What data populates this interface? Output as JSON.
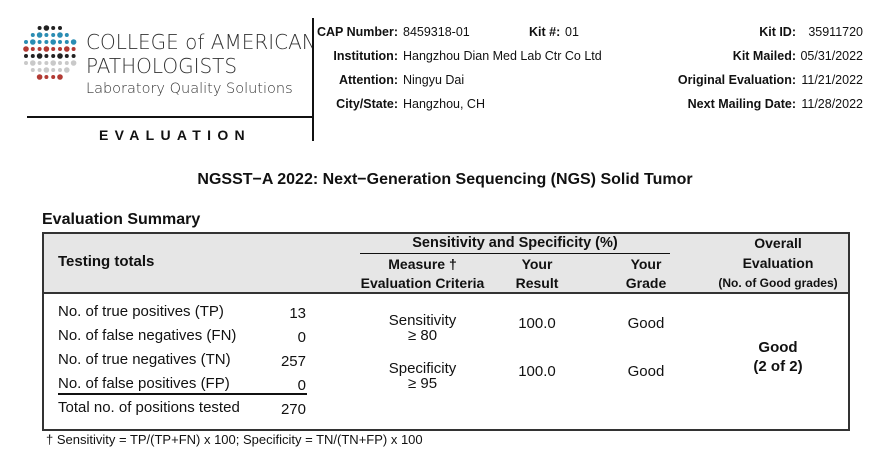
{
  "header": {
    "logo": {
      "line1": "COLLEGE of AMERICAN",
      "line2": "PATHOLOGISTS",
      "line3": "Laboratory Quality Solutions",
      "dot_colors": [
        "#2a8db3",
        "#b23a33",
        "#222222",
        "#c9c9c9"
      ]
    },
    "section": "EVALUATION",
    "cap_number_label": "CAP Number:",
    "cap_number": "8459318-01",
    "kit_no_label": "Kit #:",
    "kit_no": "01",
    "institution_label": "Institution:",
    "institution": "Hangzhou Dian Med Lab Ctr Co Ltd",
    "attention_label": "Attention:",
    "attention": "Ningyu Dai",
    "city_label": "City/State:",
    "city": "Hangzhou, CH",
    "kit_id_label": "Kit ID:",
    "kit_id": "35911720",
    "kit_mailed_label": "Kit Mailed:",
    "kit_mailed": "05/31/2022",
    "orig_eval_label": "Original Evaluation:",
    "orig_eval": "11/21/2022",
    "next_mail_label": "Next Mailing Date:",
    "next_mail": "11/28/2022"
  },
  "title": "NGSST−A 2022: Next−Generation Sequencing (NGS) Solid Tumor",
  "summary": {
    "heading": "Evaluation Summary",
    "header_bg": "#e6e6e6",
    "col_testing": "Testing totals",
    "group_header": "Sensitivity and Specificity (%)",
    "col_measure": [
      "Measure †",
      "Evaluation Criteria"
    ],
    "col_result": [
      "Your",
      "Result"
    ],
    "col_grade": [
      "Your",
      "Grade"
    ],
    "col_overall": [
      "Overall",
      "Evaluation",
      "(No. of Good grades)"
    ],
    "totals": [
      {
        "label": "No. of true positives (TP)",
        "value": "13"
      },
      {
        "label": "No. of false negatives (FN)",
        "value": "0"
      },
      {
        "label": "No. of true negatives (TN)",
        "value": "257"
      },
      {
        "label": "No. of false positives (FP)",
        "value": "0"
      },
      {
        "label": "Total no. of positions tested",
        "value": "270"
      }
    ],
    "measures": [
      {
        "name": "Sensitivity",
        "criteria": "≥ 80",
        "result": "100.0",
        "grade": "Good"
      },
      {
        "name": "Specificity",
        "criteria": "≥ 95",
        "result": "100.0",
        "grade": "Good"
      }
    ],
    "overall": [
      "Good",
      "(2 of 2)"
    ],
    "footnote": "† Sensitivity = TP/(TP+FN) x 100; Specificity = TN/(TN+FP) x 100"
  }
}
